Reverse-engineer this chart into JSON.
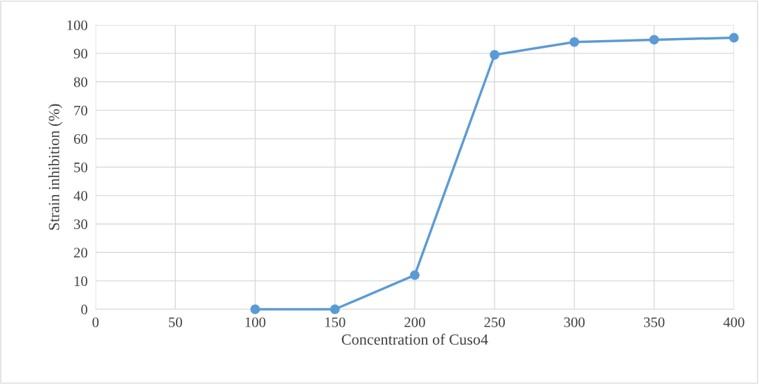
{
  "chart_data": {
    "type": "line",
    "xlabel": "Concentration of Cuso4",
    "ylabel": "Strain inhibition (%)",
    "x": [
      100,
      150,
      200,
      250,
      300,
      350,
      400
    ],
    "series": [
      {
        "color": "#5b9bd5",
        "values": [
          0,
          0,
          12,
          89.5,
          94,
          94.8,
          95.5
        ]
      }
    ],
    "xlim": [
      0,
      400
    ],
    "xticks": [
      0,
      50,
      100,
      150,
      200,
      250,
      300,
      350,
      400
    ],
    "ylim": [
      0,
      100
    ],
    "yticks": [
      0,
      10,
      20,
      30,
      40,
      50,
      60,
      70,
      80,
      90,
      100
    ],
    "grid": true,
    "marker": "circle",
    "line_style": "solid",
    "legend": false
  }
}
